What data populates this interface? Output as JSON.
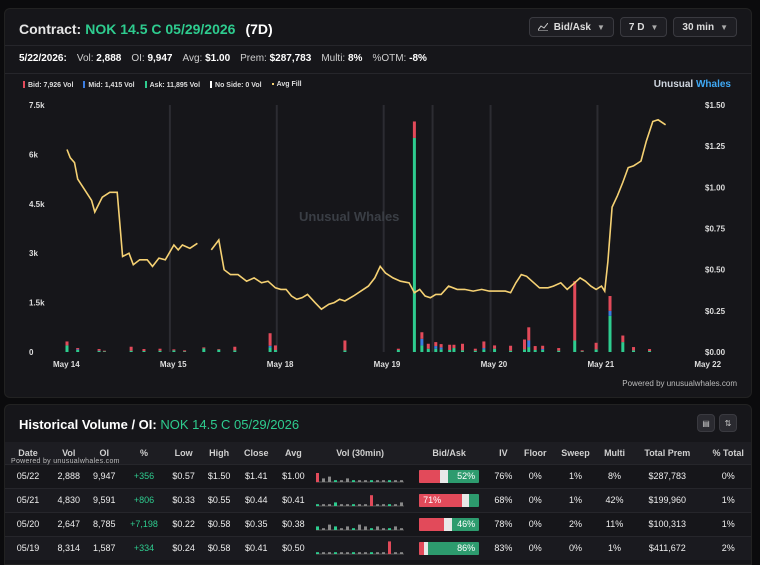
{
  "header": {
    "label": "Contract:",
    "contract": "NOK 14.5 C 05/29/2026",
    "days": "(7D)",
    "controls": [
      {
        "label": "Bid/Ask",
        "icon": "chart-line-icon"
      },
      {
        "label": "7 D"
      },
      {
        "label": "30 min"
      }
    ]
  },
  "stats": {
    "date": "5/22/2026:",
    "vol_label": "Vol:",
    "vol": "2,888",
    "oi_label": "OI:",
    "oi": "9,947",
    "avg_label": "Avg:",
    "avg": "$1.00",
    "prem_label": "Prem:",
    "prem": "$287,783",
    "multi_label": "Multi:",
    "multi": "8%",
    "otm_label": "%OTM:",
    "otm": "-8%"
  },
  "legend": [
    {
      "label": "Bid: 7,926 Vol",
      "color": "#e24a5a"
    },
    {
      "label": "Mid: 1,415 Vol",
      "color": "#3b7de0"
    },
    {
      "label": "Ask: 11,895 Vol",
      "color": "#2ecc8f"
    },
    {
      "label": "No Side: 0 Vol",
      "color": "#ffffff"
    },
    {
      "label": "Avg Fill",
      "color": "#f5d173"
    }
  ],
  "brand": {
    "a": "Unusual",
    "b": "Whales"
  },
  "watermark": {
    "a": "Unusual",
    "b": "Whales"
  },
  "powered_chart": "Powered by unusualwhales.com",
  "chart_data": {
    "type": "bar+line",
    "y_left_ticks": [
      "7.5k",
      "6k",
      "4.5k",
      "3k",
      "1.5k",
      "0"
    ],
    "y_right_ticks": [
      "$1.50",
      "$1.25",
      "$1.00",
      "$0.75",
      "$0.50",
      "$0.25",
      "$0.00"
    ],
    "x_ticks": [
      "May 14",
      "May 15",
      "May 18",
      "May 19",
      "May 20",
      "May 21",
      "May 22"
    ],
    "ylim_left": [
      0,
      7500
    ],
    "ylim_right": [
      0,
      1.5
    ],
    "avg_fill_line": [
      [
        0.0,
        1.23
      ],
      [
        0.03,
        1.18
      ],
      [
        0.07,
        1.15
      ],
      [
        0.1,
        1.05
      ],
      [
        0.17,
        0.98
      ],
      [
        0.23,
        0.92
      ],
      [
        0.26,
        0.85
      ],
      [
        0.33,
        0.94
      ],
      [
        0.4,
        0.97
      ],
      [
        0.47,
        0.97
      ],
      [
        0.52,
        0.58
      ],
      [
        0.58,
        0.6
      ],
      [
        0.62,
        0.53
      ],
      [
        0.68,
        0.56
      ],
      [
        0.75,
        0.56
      ],
      [
        0.8,
        0.52
      ],
      [
        0.86,
        0.57
      ],
      [
        0.92,
        0.56
      ],
      [
        1.0,
        0.65
      ],
      [
        1.04,
        0.62
      ],
      [
        1.08,
        0.65
      ],
      [
        1.15,
        0.63
      ],
      [
        1.22,
        0.66
      ],
      null,
      [
        1.35,
        0.62
      ],
      [
        1.42,
        0.68
      ],
      [
        1.47,
        0.5
      ],
      [
        1.53,
        0.47
      ],
      [
        1.6,
        0.47
      ],
      [
        1.68,
        0.43
      ],
      [
        1.75,
        0.45
      ],
      [
        1.82,
        0.42
      ],
      [
        1.88,
        0.43
      ],
      [
        1.95,
        0.39
      ],
      [
        2.0,
        0.38
      ],
      [
        2.05,
        0.38
      ],
      [
        2.1,
        0.34
      ],
      [
        2.15,
        0.32
      ],
      [
        2.2,
        0.33
      ],
      [
        2.25,
        0.35
      ],
      [
        2.32,
        0.3
      ],
      [
        2.38,
        0.26
      ],
      [
        2.45,
        0.29
      ],
      [
        2.5,
        0.3
      ],
      [
        2.55,
        0.32
      ],
      [
        2.6,
        0.31
      ],
      [
        2.68,
        0.34
      ],
      [
        2.75,
        0.37
      ],
      [
        2.82,
        0.4
      ],
      [
        2.88,
        0.45
      ],
      [
        2.93,
        0.52
      ],
      [
        2.98,
        0.48
      ],
      [
        3.05,
        0.45
      ],
      [
        3.12,
        0.43
      ],
      [
        3.2,
        0.42
      ],
      [
        3.25,
        0.36
      ],
      [
        3.3,
        0.38
      ],
      [
        3.35,
        0.34
      ],
      [
        3.4,
        0.33
      ],
      [
        3.45,
        0.35
      ],
      [
        3.5,
        0.35
      ],
      [
        3.57,
        0.4
      ],
      [
        3.65,
        0.38
      ],
      [
        3.72,
        0.38
      ],
      [
        3.8,
        0.37
      ],
      [
        3.88,
        0.38
      ],
      [
        3.95,
        0.37
      ],
      [
        4.02,
        0.37
      ],
      [
        4.1,
        0.37
      ],
      [
        4.15,
        0.36
      ],
      [
        4.2,
        0.42
      ],
      [
        4.25,
        0.47
      ],
      [
        4.3,
        0.46
      ],
      [
        4.35,
        0.43
      ],
      [
        4.42,
        0.39
      ],
      [
        4.5,
        0.39
      ],
      [
        4.55,
        0.4
      ],
      [
        4.62,
        0.42
      ],
      [
        4.68,
        0.38
      ],
      [
        4.75,
        0.42
      ],
      [
        4.8,
        0.45
      ],
      [
        4.85,
        0.43
      ],
      [
        4.9,
        0.4
      ],
      [
        4.95,
        0.38
      ],
      [
        5.0,
        0.4
      ],
      [
        5.03,
        0.37
      ],
      [
        5.06,
        0.55
      ],
      [
        5.1,
        0.88
      ],
      [
        5.15,
        0.95
      ],
      [
        5.2,
        1.03
      ],
      [
        5.25,
        1.12
      ],
      [
        5.3,
        1.13
      ],
      [
        5.37,
        1.16
      ],
      [
        5.42,
        1.28
      ],
      [
        5.48,
        1.4
      ],
      [
        5.53,
        1.41
      ],
      [
        5.6,
        1.38
      ]
    ],
    "bars": [
      {
        "x": 0.0,
        "bid": 120,
        "mid": 0,
        "ask": 200
      },
      {
        "x": 0.1,
        "bid": 40,
        "mid": 20,
        "ask": 60
      },
      {
        "x": 0.3,
        "bid": 50,
        "mid": 10,
        "ask": 30
      },
      {
        "x": 0.35,
        "bid": 20,
        "mid": 0,
        "ask": 20
      },
      {
        "x": 0.6,
        "bid": 120,
        "mid": 0,
        "ask": 40
      },
      {
        "x": 0.72,
        "bid": 60,
        "mid": 0,
        "ask": 30
      },
      {
        "x": 0.87,
        "bid": 60,
        "mid": 0,
        "ask": 40
      },
      {
        "x": 1.0,
        "bid": 30,
        "mid": 0,
        "ask": 50
      },
      {
        "x": 1.1,
        "bid": 30,
        "mid": 0,
        "ask": 20
      },
      {
        "x": 1.28,
        "bid": 30,
        "mid": 0,
        "ask": 110
      },
      {
        "x": 1.42,
        "bid": 20,
        "mid": 0,
        "ask": 70
      },
      {
        "x": 1.57,
        "bid": 110,
        "mid": 0,
        "ask": 50
      },
      {
        "x": 1.9,
        "bid": 380,
        "mid": 50,
        "ask": 140
      },
      {
        "x": 1.95,
        "bid": 140,
        "mid": 0,
        "ask": 60
      },
      {
        "x": 2.6,
        "bid": 300,
        "mid": 0,
        "ask": 50
      },
      {
        "x": 3.1,
        "bid": 40,
        "mid": 0,
        "ask": 60
      },
      {
        "x": 3.25,
        "bid": 500,
        "mid": 0,
        "ask": 6500
      },
      {
        "x": 3.32,
        "bid": 200,
        "mid": 200,
        "ask": 200
      },
      {
        "x": 3.38,
        "bid": 150,
        "mid": 0,
        "ask": 100
      },
      {
        "x": 3.45,
        "bid": 120,
        "mid": 80,
        "ask": 100
      },
      {
        "x": 3.5,
        "bid": 100,
        "mid": 60,
        "ask": 80
      },
      {
        "x": 3.58,
        "bid": 160,
        "mid": 0,
        "ask": 60
      },
      {
        "x": 3.62,
        "bid": 100,
        "mid": 0,
        "ask": 120
      },
      {
        "x": 3.7,
        "bid": 200,
        "mid": 0,
        "ask": 50
      },
      {
        "x": 3.82,
        "bid": 60,
        "mid": 0,
        "ask": 40
      },
      {
        "x": 3.9,
        "bid": 200,
        "mid": 40,
        "ask": 80
      },
      {
        "x": 4.0,
        "bid": 100,
        "mid": 0,
        "ask": 100
      },
      {
        "x": 4.15,
        "bid": 150,
        "mid": 0,
        "ask": 40
      },
      {
        "x": 4.28,
        "bid": 300,
        "mid": 0,
        "ask": 80
      },
      {
        "x": 4.32,
        "bid": 400,
        "mid": 200,
        "ask": 150
      },
      {
        "x": 4.38,
        "bid": 120,
        "mid": 0,
        "ask": 60
      },
      {
        "x": 4.45,
        "bid": 100,
        "mid": 30,
        "ask": 60
      },
      {
        "x": 4.6,
        "bid": 80,
        "mid": 0,
        "ask": 40
      },
      {
        "x": 4.75,
        "bid": 1800,
        "mid": 0,
        "ask": 350
      },
      {
        "x": 4.82,
        "bid": 30,
        "mid": 0,
        "ask": 20
      },
      {
        "x": 4.95,
        "bid": 200,
        "mid": 0,
        "ask": 80
      },
      {
        "x": 5.08,
        "bid": 450,
        "mid": 150,
        "ask": 1100
      },
      {
        "x": 5.2,
        "bid": 200,
        "mid": 0,
        "ask": 300
      },
      {
        "x": 5.3,
        "bid": 100,
        "mid": 0,
        "ask": 50
      },
      {
        "x": 5.45,
        "bid": 60,
        "mid": 0,
        "ask": 30
      }
    ]
  },
  "history": {
    "title": "Historical Volume / OI:",
    "contract": "NOK 14.5 C 05/29/2026",
    "powered": "Powered by unusualwhales.com",
    "columns": [
      "Date",
      "Vol",
      "OI",
      "%",
      "Low",
      "High",
      "Close",
      "Avg",
      "Vol (30min)",
      "Bid/Ask",
      "IV",
      "Floor",
      "Sweep",
      "Multi",
      "Total Prem",
      "% Total"
    ],
    "rows": [
      {
        "date": "05/22",
        "vol": "2,888",
        "oi": "9,947",
        "chg": "+356",
        "low": "$0.57",
        "high": "$1.50",
        "close": "$1.41",
        "avg": "$1.00",
        "bid_pct": 35,
        "ask_pct": 52,
        "ba_label": "52%",
        "iv": "76%",
        "floor": "0%",
        "sweep": "1%",
        "multi": "8%",
        "prem": "$287,783",
        "total": "0%",
        "spark": [
          5,
          2,
          3,
          1,
          1,
          2,
          1,
          1,
          1,
          1,
          1,
          1,
          1,
          1,
          1
        ]
      },
      {
        "date": "05/21",
        "vol": "4,830",
        "oi": "9,591",
        "chg": "+806",
        "low": "$0.33",
        "high": "$0.55",
        "close": "$0.44",
        "avg": "$0.41",
        "bid_pct": 71,
        "ask_pct": 17,
        "ba_label": "71%",
        "iv": "68%",
        "floor": "0%",
        "sweep": "1%",
        "multi": "42%",
        "prem": "$199,960",
        "total": "1%",
        "spark": [
          1,
          1,
          1,
          2,
          1,
          1,
          1,
          1,
          1,
          6,
          1,
          1,
          1,
          1,
          2
        ]
      },
      {
        "date": "05/20",
        "vol": "2,647",
        "oi": "8,785",
        "chg": "+7,198",
        "low": "$0.22",
        "high": "$0.58",
        "close": "$0.35",
        "avg": "$0.38",
        "bid_pct": 42,
        "ask_pct": 46,
        "ba_label": "46%",
        "iv": "78%",
        "floor": "0%",
        "sweep": "2%",
        "multi": "11%",
        "prem": "$100,313",
        "total": "1%",
        "spark": [
          2,
          1,
          3,
          2,
          1,
          2,
          1,
          3,
          2,
          1,
          2,
          1,
          1,
          2,
          1
        ]
      },
      {
        "date": "05/19",
        "vol": "8,314",
        "oi": "1,587",
        "chg": "+334",
        "low": "$0.24",
        "high": "$0.58",
        "close": "$0.41",
        "avg": "$0.50",
        "bid_pct": 8,
        "ask_pct": 86,
        "ba_label": "86%",
        "iv": "83%",
        "floor": "0%",
        "sweep": "0%",
        "multi": "1%",
        "prem": "$411,672",
        "total": "2%",
        "spark": [
          1,
          1,
          1,
          1,
          1,
          1,
          1,
          1,
          1,
          1,
          1,
          1,
          7,
          1,
          1
        ]
      }
    ]
  }
}
